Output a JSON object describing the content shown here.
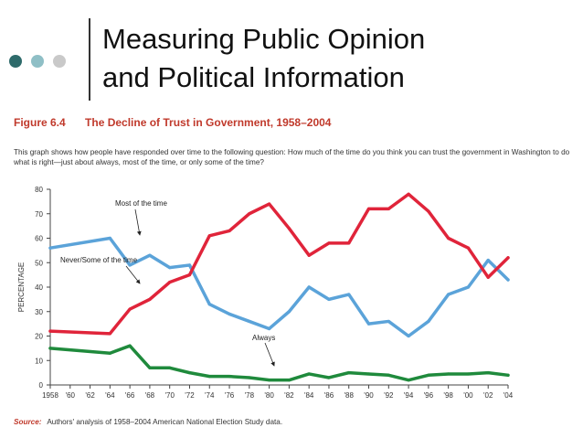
{
  "slide": {
    "title_line1": "Measuring Public Opinion",
    "title_line2": "and Political Information",
    "dot_colors": [
      "#2e6b6b",
      "#8fbfc6",
      "#c9c9c9"
    ]
  },
  "figure": {
    "label": "Figure 6.4",
    "title": "The Decline of Trust in Government, 1958–2004",
    "description": "This graph shows how people have responded over time to the following question: How much of the time do you think you can trust the government in Washington to do what is right—just about always, most of the time, or only some of the time?",
    "source_label": "Source:",
    "source_text": "Authors' analysis of 1958–2004 American National Election Study data."
  },
  "chart_data": {
    "type": "line",
    "title": "The Decline of Trust in Government, 1958–2004",
    "xlabel": "",
    "ylabel": "PERCENTAGE",
    "ylim": [
      0,
      80
    ],
    "yticks": [
      0,
      10,
      20,
      30,
      40,
      50,
      60,
      70,
      80
    ],
    "x": [
      1958,
      1964,
      1966,
      1968,
      1970,
      1972,
      1974,
      1976,
      1978,
      1980,
      1982,
      1984,
      1986,
      1988,
      1990,
      1992,
      1994,
      1996,
      1998,
      2000,
      2002,
      2004
    ],
    "xtick_labels": [
      "1958",
      "'60",
      "'62",
      "'64",
      "'66",
      "'68",
      "'70",
      "'72",
      "'74",
      "'76",
      "'78",
      "'80",
      "'82",
      "'84",
      "'86",
      "'88",
      "'90",
      "'92",
      "'94",
      "'96",
      "'98",
      "'00",
      "'02",
      "'04"
    ],
    "series": [
      {
        "name": "Most of the time",
        "color": "#5ba3d9",
        "values": [
          56,
          60,
          49,
          53,
          48,
          49,
          33,
          29,
          26,
          23,
          30,
          40,
          35,
          37,
          25,
          26,
          20,
          26,
          37,
          40,
          51,
          43
        ]
      },
      {
        "name": "Never/Some of the time",
        "color": "#e0243a",
        "values": [
          22,
          21,
          31,
          35,
          42,
          45,
          61,
          63,
          70,
          74,
          64,
          53,
          58,
          58,
          72,
          72,
          78,
          71,
          60,
          56,
          44,
          52
        ]
      },
      {
        "name": "Always",
        "color": "#1f8a3c",
        "values": [
          15,
          13,
          16,
          7,
          7,
          5,
          3.5,
          3.5,
          3,
          2,
          2,
          4.5,
          3,
          5,
          4.5,
          4,
          2,
          4,
          4.5,
          4.5,
          5,
          4
        ]
      }
    ],
    "annotations": [
      {
        "text": "Most of the time",
        "series": 0
      },
      {
        "text": "Never/Some of the time",
        "series": 1
      },
      {
        "text": "Always",
        "series": 2
      }
    ],
    "grid": false
  }
}
